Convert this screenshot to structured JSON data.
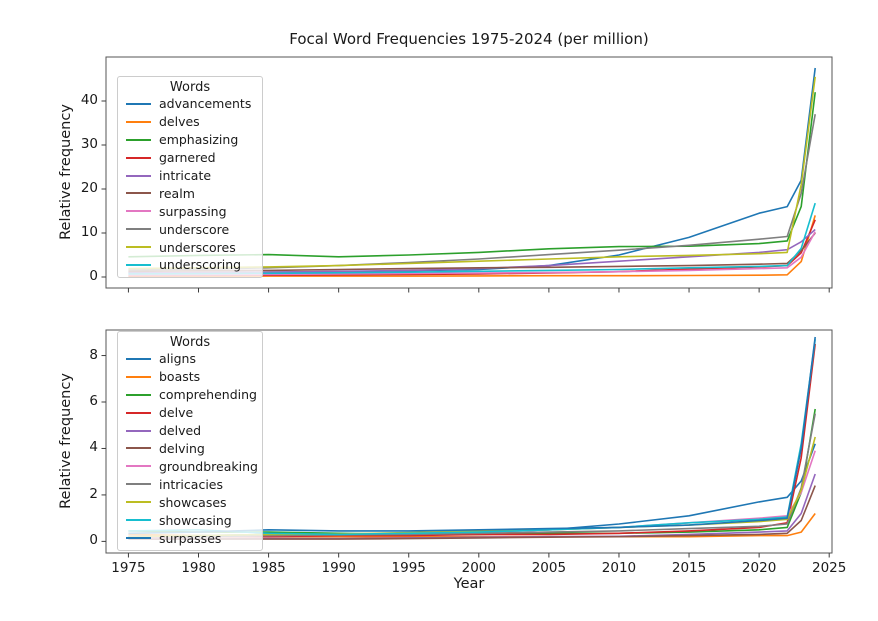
{
  "figure": {
    "title": "Focal Word Frequencies 1975-2024 (per million)",
    "xlabel": "Year",
    "ylabel": "Relative frequency"
  },
  "chart_data": [
    {
      "type": "line",
      "legend_title": "Words",
      "legend_position": "upper left",
      "grid": false,
      "xlim": [
        1973.4,
        2025.2
      ],
      "ylim": [
        -2.5,
        50
      ],
      "xticks": [
        1975,
        1980,
        1985,
        1990,
        1995,
        2000,
        2005,
        2010,
        2015,
        2020,
        2025
      ],
      "show_xticklabels": false,
      "yticks": [
        0,
        10,
        20,
        30,
        40
      ],
      "ylabel": "Relative frequency",
      "x": [
        1975,
        1980,
        1985,
        1990,
        1995,
        2000,
        2005,
        2010,
        2015,
        2020,
        2022,
        2023,
        2024
      ],
      "series": [
        {
          "name": "advancements",
          "color": "#1f77b4",
          "values": [
            1.0,
            0.9,
            1.1,
            1.2,
            1.4,
            1.7,
            2.6,
            5.0,
            9.0,
            14.5,
            16.0,
            22.0,
            47.5
          ]
        },
        {
          "name": "delves",
          "color": "#ff7f0e",
          "values": [
            0.15,
            0.15,
            0.2,
            0.2,
            0.2,
            0.25,
            0.3,
            0.3,
            0.35,
            0.4,
            0.5,
            3.5,
            14.0
          ]
        },
        {
          "name": "emphasizing",
          "color": "#2ca02c",
          "values": [
            4.6,
            4.9,
            5.1,
            4.6,
            5.0,
            5.6,
            6.4,
            6.9,
            7.0,
            7.6,
            8.2,
            16.0,
            42.0
          ]
        },
        {
          "name": "garnered",
          "color": "#d62728",
          "values": [
            0.3,
            0.35,
            0.4,
            0.5,
            0.6,
            0.7,
            0.9,
            1.2,
            1.8,
            2.3,
            2.6,
            5.5,
            13.0
          ]
        },
        {
          "name": "intricate",
          "color": "#9467bd",
          "values": [
            0.9,
            1.0,
            1.1,
            1.3,
            1.5,
            1.9,
            2.6,
            3.6,
            4.6,
            5.6,
            6.2,
            8.0,
            10.8
          ]
        },
        {
          "name": "realm",
          "color": "#8c564b",
          "values": [
            1.3,
            1.4,
            1.5,
            1.7,
            1.9,
            2.1,
            2.2,
            2.4,
            2.6,
            2.9,
            3.1,
            6.0,
            10.0
          ]
        },
        {
          "name": "surpassing",
          "color": "#e377c2",
          "values": [
            0.5,
            0.55,
            0.6,
            0.7,
            0.8,
            0.9,
            1.0,
            1.2,
            1.5,
            1.9,
            2.1,
            4.5,
            10.3
          ]
        },
        {
          "name": "underscore",
          "color": "#7f7f7f",
          "values": [
            1.6,
            1.8,
            2.1,
            2.6,
            3.3,
            4.1,
            5.1,
            6.1,
            7.2,
            8.6,
            9.2,
            19.0,
            37.0
          ]
        },
        {
          "name": "underscores",
          "color": "#bcbd22",
          "values": [
            1.9,
            2.1,
            2.3,
            2.6,
            3.1,
            3.6,
            4.1,
            4.6,
            4.9,
            5.3,
            5.6,
            21.0,
            45.5
          ]
        },
        {
          "name": "underscoring",
          "color": "#17becf",
          "values": [
            0.7,
            0.75,
            0.85,
            0.95,
            1.1,
            1.3,
            1.5,
            1.7,
            2.1,
            2.4,
            2.6,
            6.5,
            16.8
          ]
        }
      ]
    },
    {
      "type": "line",
      "legend_title": "Words",
      "legend_position": "upper left",
      "grid": false,
      "xlim": [
        1973.4,
        2025.2
      ],
      "ylim": [
        -0.5,
        9.1
      ],
      "xticks": [
        1975,
        1980,
        1985,
        1990,
        1995,
        2000,
        2005,
        2010,
        2015,
        2020,
        2025
      ],
      "show_xticklabels": true,
      "yticks": [
        0,
        2,
        4,
        6,
        8
      ],
      "ylabel": "Relative frequency",
      "xlabel": "Year",
      "x": [
        1975,
        1980,
        1985,
        1990,
        1995,
        2000,
        2005,
        2010,
        2015,
        2020,
        2022,
        2023,
        2024
      ],
      "series": [
        {
          "name": "aligns",
          "color": "#1f77b4",
          "values": [
            0.2,
            0.25,
            0.3,
            0.3,
            0.35,
            0.4,
            0.5,
            0.75,
            1.1,
            1.7,
            1.9,
            2.6,
            4.2
          ]
        },
        {
          "name": "boasts",
          "color": "#ff7f0e",
          "values": [
            0.3,
            0.25,
            0.2,
            0.2,
            0.2,
            0.2,
            0.2,
            0.2,
            0.2,
            0.25,
            0.25,
            0.4,
            1.2
          ]
        },
        {
          "name": "comprehending",
          "color": "#2ca02c",
          "values": [
            0.45,
            0.4,
            0.4,
            0.35,
            0.3,
            0.3,
            0.35,
            0.35,
            0.4,
            0.5,
            0.6,
            2.1,
            5.7
          ]
        },
        {
          "name": "delve",
          "color": "#d62728",
          "values": [
            0.2,
            0.2,
            0.2,
            0.25,
            0.25,
            0.3,
            0.3,
            0.35,
            0.45,
            0.6,
            0.8,
            3.6,
            8.5
          ]
        },
        {
          "name": "delved",
          "color": "#9467bd",
          "values": [
            0.1,
            0.1,
            0.12,
            0.12,
            0.15,
            0.18,
            0.2,
            0.22,
            0.3,
            0.4,
            0.45,
            1.2,
            2.9
          ]
        },
        {
          "name": "delving",
          "color": "#8c564b",
          "values": [
            0.1,
            0.1,
            0.1,
            0.1,
            0.12,
            0.15,
            0.18,
            0.2,
            0.25,
            0.3,
            0.35,
            0.9,
            2.4
          ]
        },
        {
          "name": "groundbreaking",
          "color": "#e377c2",
          "values": [
            0.15,
            0.2,
            0.25,
            0.3,
            0.35,
            0.4,
            0.5,
            0.6,
            0.8,
            1.0,
            1.1,
            2.1,
            3.9
          ]
        },
        {
          "name": "intricacies",
          "color": "#7f7f7f",
          "values": [
            0.2,
            0.2,
            0.25,
            0.28,
            0.3,
            0.35,
            0.4,
            0.45,
            0.55,
            0.65,
            0.75,
            2.3,
            5.5
          ]
        },
        {
          "name": "showcases",
          "color": "#bcbd22",
          "values": [
            0.2,
            0.25,
            0.3,
            0.32,
            0.38,
            0.45,
            0.5,
            0.6,
            0.7,
            0.85,
            0.95,
            2.2,
            4.5
          ]
        },
        {
          "name": "showcasing",
          "color": "#17becf",
          "values": [
            0.45,
            0.5,
            0.35,
            0.3,
            0.35,
            0.4,
            0.5,
            0.6,
            0.8,
            0.95,
            1.05,
            4.2,
            8.7
          ]
        },
        {
          "name": "surpasses",
          "color": "#1f77b4",
          "values": [
            0.35,
            0.4,
            0.5,
            0.45,
            0.45,
            0.5,
            0.55,
            0.6,
            0.7,
            0.9,
            1.0,
            4.0,
            8.8
          ]
        }
      ]
    }
  ]
}
